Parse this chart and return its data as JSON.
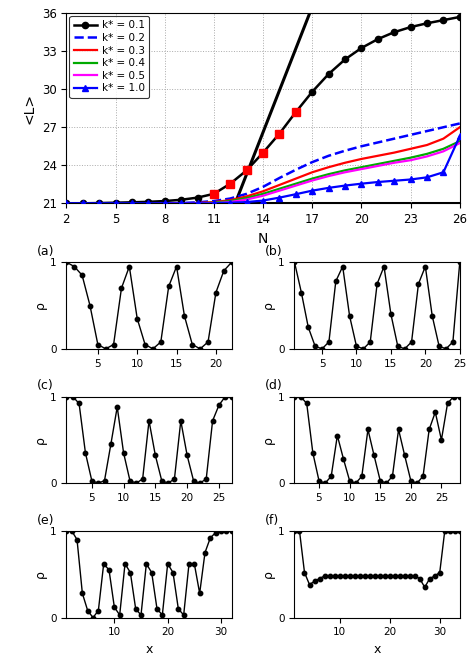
{
  "top_plot": {
    "xlabel": "N",
    "ylabel": "<L>",
    "xlim": [
      2,
      26
    ],
    "ylim": [
      21,
      36
    ],
    "yticks": [
      21,
      24,
      27,
      30,
      33,
      36
    ],
    "xticks": [
      2,
      5,
      8,
      11,
      14,
      17,
      20,
      23,
      26
    ],
    "horizontal_line_y": 21,
    "diag_x0": 12.3,
    "diag_slope": 3.3,
    "curves": {
      "k01": {
        "label": "k* = 0.1",
        "color": "#000000",
        "linestyle": "-",
        "linewidth": 1.8,
        "marker": "o",
        "markersize": 4.5,
        "x": [
          2,
          3,
          4,
          5,
          6,
          7,
          8,
          9,
          10,
          11,
          12,
          13,
          14,
          15,
          16,
          17,
          18,
          19,
          20,
          21,
          22,
          23,
          24,
          25,
          26
        ],
        "y": [
          21.0,
          21.0,
          21.02,
          21.05,
          21.08,
          21.12,
          21.18,
          21.28,
          21.45,
          21.75,
          22.55,
          23.6,
          25.0,
          26.5,
          28.2,
          29.8,
          31.2,
          32.35,
          33.25,
          33.95,
          34.5,
          34.9,
          35.2,
          35.45,
          35.7
        ]
      },
      "k02": {
        "label": "k* = 0.2",
        "color": "#0000ff",
        "linestyle": "--",
        "linewidth": 1.8,
        "marker": null,
        "x": [
          2,
          3,
          4,
          5,
          6,
          7,
          8,
          9,
          10,
          11,
          12,
          13,
          14,
          15,
          16,
          17,
          18,
          19,
          20,
          21,
          22,
          23,
          24,
          25,
          26
        ],
        "y": [
          21.0,
          21.0,
          21.0,
          21.0,
          21.0,
          21.0,
          21.0,
          21.02,
          21.08,
          21.18,
          21.38,
          21.75,
          22.3,
          23.0,
          23.65,
          24.25,
          24.75,
          25.15,
          25.5,
          25.8,
          26.1,
          26.4,
          26.7,
          27.0,
          27.3
        ]
      },
      "k03": {
        "label": "k* = 0.3",
        "color": "#ff0000",
        "linestyle": "-",
        "linewidth": 1.6,
        "marker": null,
        "x": [
          2,
          3,
          4,
          5,
          6,
          7,
          8,
          9,
          10,
          11,
          12,
          13,
          14,
          15,
          16,
          17,
          18,
          19,
          20,
          21,
          22,
          23,
          24,
          25,
          26
        ],
        "y": [
          21.0,
          21.0,
          21.0,
          21.0,
          21.0,
          21.0,
          21.0,
          21.0,
          21.03,
          21.1,
          21.25,
          21.55,
          21.95,
          22.45,
          22.95,
          23.45,
          23.85,
          24.2,
          24.5,
          24.75,
          25.0,
          25.3,
          25.6,
          26.1,
          27.0
        ]
      },
      "k04": {
        "label": "k* = 0.4",
        "color": "#00aa00",
        "linestyle": "-",
        "linewidth": 1.6,
        "marker": null,
        "x": [
          2,
          3,
          4,
          5,
          6,
          7,
          8,
          9,
          10,
          11,
          12,
          13,
          14,
          15,
          16,
          17,
          18,
          19,
          20,
          21,
          22,
          23,
          24,
          25,
          26
        ],
        "y": [
          21.0,
          21.0,
          21.0,
          21.0,
          21.0,
          21.0,
          21.0,
          21.0,
          21.0,
          21.05,
          21.18,
          21.42,
          21.75,
          22.15,
          22.55,
          22.95,
          23.3,
          23.6,
          23.85,
          24.1,
          24.35,
          24.6,
          24.9,
          25.3,
          25.9
        ]
      },
      "k05": {
        "label": "k* = 0.5",
        "color": "#ff00ff",
        "linestyle": "-",
        "linewidth": 1.6,
        "marker": null,
        "x": [
          2,
          3,
          4,
          5,
          6,
          7,
          8,
          9,
          10,
          11,
          12,
          13,
          14,
          15,
          16,
          17,
          18,
          19,
          20,
          21,
          22,
          23,
          24,
          25,
          26
        ],
        "y": [
          21.0,
          21.0,
          21.0,
          21.0,
          21.0,
          21.0,
          21.0,
          21.0,
          21.0,
          21.0,
          21.1,
          21.3,
          21.6,
          22.0,
          22.4,
          22.8,
          23.15,
          23.45,
          23.7,
          23.95,
          24.2,
          24.4,
          24.7,
          25.1,
          25.75
        ]
      },
      "k10": {
        "label": "k* = 1.0",
        "color": "#0000ff",
        "linestyle": "-",
        "linewidth": 1.6,
        "marker": "^",
        "markersize": 4.5,
        "x": [
          2,
          3,
          4,
          5,
          6,
          7,
          8,
          9,
          10,
          11,
          12,
          13,
          14,
          15,
          16,
          17,
          18,
          19,
          20,
          21,
          22,
          23,
          24,
          25,
          26
        ],
        "y": [
          21.0,
          21.0,
          21.0,
          21.0,
          21.0,
          21.0,
          21.0,
          21.0,
          21.0,
          21.0,
          21.05,
          21.1,
          21.22,
          21.45,
          21.72,
          22.0,
          22.22,
          22.4,
          22.55,
          22.68,
          22.78,
          22.88,
          23.05,
          23.45,
          26.3
        ]
      }
    },
    "red_squares": {
      "x": [
        11,
        12,
        13,
        14,
        15,
        16
      ],
      "y": [
        21.75,
        22.55,
        23.6,
        25.0,
        26.5,
        28.2
      ]
    }
  },
  "subplots": {
    "a": {
      "label": "(a)",
      "ylabel": "ρ",
      "x": [
        1,
        2,
        3,
        4,
        5,
        6,
        7,
        8,
        9,
        10,
        11,
        12,
        13,
        14,
        15,
        16,
        17,
        18,
        19,
        20,
        21,
        22
      ],
      "y": [
        1.0,
        0.95,
        0.85,
        0.5,
        0.05,
        0.0,
        0.05,
        0.7,
        0.95,
        0.35,
        0.05,
        0.0,
        0.08,
        0.72,
        0.95,
        0.38,
        0.05,
        0.0,
        0.08,
        0.65,
        0.9,
        1.0
      ],
      "xlim": [
        1,
        22
      ],
      "xticks": [
        5,
        10,
        15,
        20
      ],
      "ylim": [
        0,
        1
      ],
      "yticks": [
        0,
        1
      ]
    },
    "b": {
      "label": "(b)",
      "ylabel": "ρ",
      "x": [
        1,
        2,
        3,
        4,
        5,
        6,
        7,
        8,
        9,
        10,
        11,
        12,
        13,
        14,
        15,
        16,
        17,
        18,
        19,
        20,
        21,
        22,
        23,
        24,
        25
      ],
      "y": [
        1.0,
        0.65,
        0.25,
        0.03,
        0.0,
        0.08,
        0.78,
        0.95,
        0.38,
        0.03,
        0.0,
        0.08,
        0.75,
        0.95,
        0.4,
        0.03,
        0.0,
        0.08,
        0.75,
        0.95,
        0.38,
        0.03,
        0.0,
        0.08,
        1.0
      ],
      "xlim": [
        1,
        25
      ],
      "xticks": [
        5,
        10,
        15,
        20,
        25
      ],
      "ylim": [
        0,
        1
      ],
      "yticks": [
        0,
        1
      ]
    },
    "c": {
      "label": "(c)",
      "ylabel": "ρ",
      "x": [
        1,
        2,
        3,
        4,
        5,
        6,
        7,
        8,
        9,
        10,
        11,
        12,
        13,
        14,
        15,
        16,
        17,
        18,
        19,
        20,
        21,
        22,
        23,
        24,
        25,
        26,
        27
      ],
      "y": [
        1.0,
        1.0,
        0.92,
        0.35,
        0.03,
        0.0,
        0.03,
        0.45,
        0.88,
        0.35,
        0.03,
        0.0,
        0.05,
        0.72,
        0.32,
        0.03,
        0.0,
        0.05,
        0.72,
        0.32,
        0.03,
        0.0,
        0.05,
        0.72,
        0.9,
        1.0,
        1.0
      ],
      "xlim": [
        1,
        27
      ],
      "xticks": [
        5,
        10,
        15,
        20,
        25
      ],
      "ylim": [
        0,
        1
      ],
      "yticks": [
        0,
        1
      ]
    },
    "d": {
      "label": "(d)",
      "ylabel": "ρ",
      "x": [
        1,
        2,
        3,
        4,
        5,
        6,
        7,
        8,
        9,
        10,
        11,
        12,
        13,
        14,
        15,
        16,
        17,
        18,
        19,
        20,
        21,
        22,
        23,
        24,
        25,
        26,
        27,
        28
      ],
      "y": [
        1.0,
        1.0,
        0.92,
        0.35,
        0.03,
        0.0,
        0.08,
        0.55,
        0.28,
        0.03,
        0.0,
        0.08,
        0.62,
        0.32,
        0.03,
        0.0,
        0.08,
        0.62,
        0.32,
        0.03,
        0.0,
        0.08,
        0.62,
        0.82,
        0.5,
        0.92,
        1.0,
        1.0
      ],
      "xlim": [
        1,
        28
      ],
      "xticks": [
        5,
        10,
        15,
        20,
        25
      ],
      "ylim": [
        0,
        1
      ],
      "yticks": [
        0,
        1
      ]
    },
    "e": {
      "label": "(e)",
      "ylabel": "ρ",
      "x": [
        1,
        2,
        3,
        4,
        5,
        6,
        7,
        8,
        9,
        10,
        11,
        12,
        13,
        14,
        15,
        16,
        17,
        18,
        19,
        20,
        21,
        22,
        23,
        24,
        25,
        26,
        27,
        28,
        29,
        30,
        31,
        32
      ],
      "y": [
        1.0,
        1.0,
        0.9,
        0.28,
        0.08,
        0.0,
        0.08,
        0.62,
        0.55,
        0.12,
        0.03,
        0.62,
        0.52,
        0.1,
        0.03,
        0.62,
        0.52,
        0.1,
        0.03,
        0.62,
        0.52,
        0.1,
        0.03,
        0.62,
        0.62,
        0.28,
        0.75,
        0.92,
        0.98,
        1.0,
        1.0,
        1.0
      ],
      "xlim": [
        1,
        32
      ],
      "xticks": [
        10,
        20,
        30
      ],
      "ylim": [
        0,
        1
      ],
      "yticks": [
        0,
        1
      ]
    },
    "f": {
      "label": "(f)",
      "ylabel": "ρ",
      "x": [
        1,
        2,
        3,
        4,
        5,
        6,
        7,
        8,
        9,
        10,
        11,
        12,
        13,
        14,
        15,
        16,
        17,
        18,
        19,
        20,
        21,
        22,
        23,
        24,
        25,
        26,
        27,
        28,
        29,
        30,
        31,
        32,
        33,
        34
      ],
      "y": [
        1.0,
        1.0,
        0.52,
        0.38,
        0.42,
        0.45,
        0.48,
        0.48,
        0.48,
        0.48,
        0.48,
        0.48,
        0.48,
        0.48,
        0.48,
        0.48,
        0.48,
        0.48,
        0.48,
        0.48,
        0.48,
        0.48,
        0.48,
        0.48,
        0.48,
        0.45,
        0.35,
        0.45,
        0.48,
        0.52,
        1.0,
        1.0,
        1.0,
        1.0
      ],
      "xlim": [
        1,
        34
      ],
      "xticks": [
        10,
        20,
        30
      ],
      "ylim": [
        0,
        1
      ],
      "yticks": [
        0,
        1
      ]
    }
  }
}
